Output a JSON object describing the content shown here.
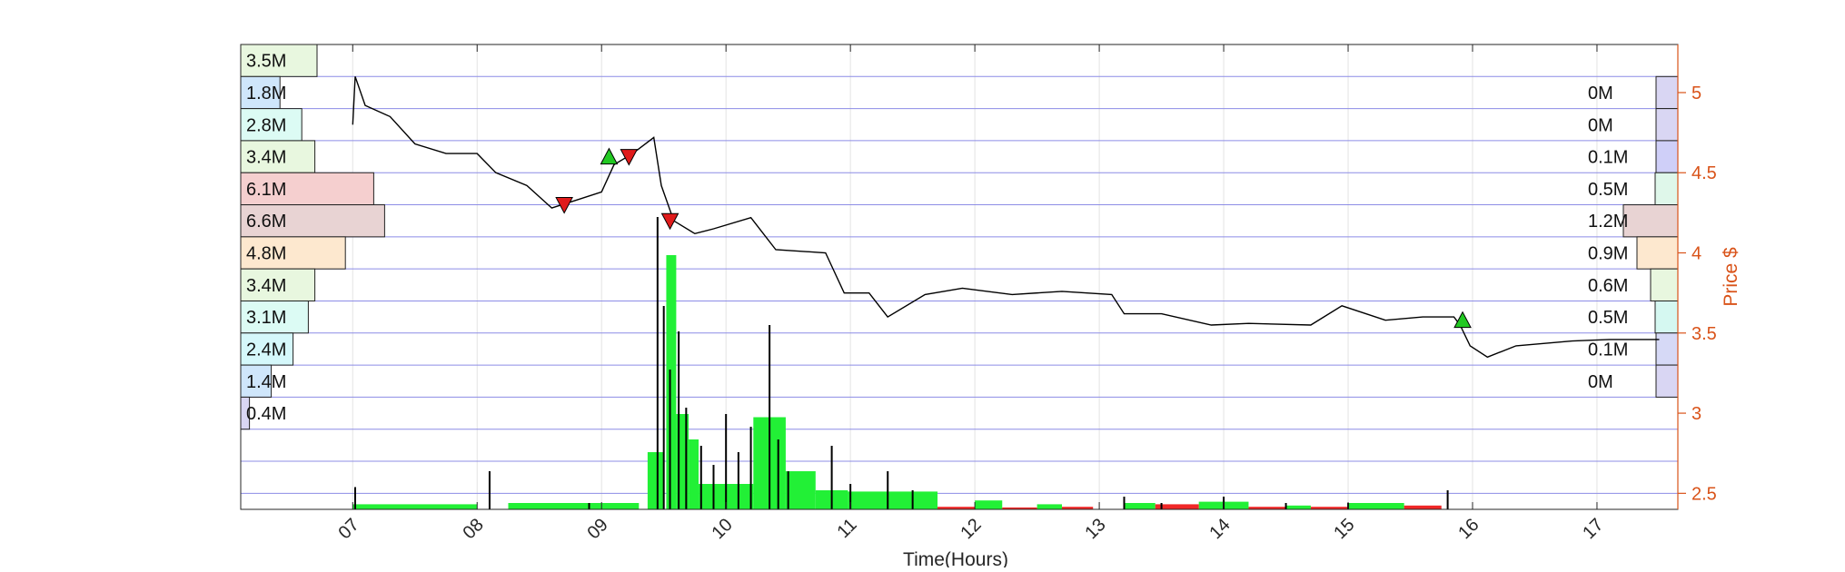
{
  "chart_data": {
    "type": "line",
    "title": "",
    "xlabel": "Time(Hours)",
    "ylabel": "Price $",
    "xlim": [
      6.1,
      17.65
    ],
    "ylim": [
      2.4,
      5.3
    ],
    "x_ticks": [
      "07",
      "08",
      "09",
      "10",
      "11",
      "12",
      "13",
      "14",
      "15",
      "16",
      "17"
    ],
    "y_ticks": [
      2.5,
      3,
      3.5,
      4,
      4.5,
      5
    ],
    "grid": true,
    "price_levels": [
      2.5,
      2.7,
      2.9,
      3.1,
      3.3,
      3.5,
      3.7,
      3.9,
      4.1,
      4.3,
      4.5,
      4.7,
      4.9,
      5.1,
      5.3
    ],
    "price_series": [
      [
        7.0,
        4.8
      ],
      [
        7.02,
        5.1
      ],
      [
        7.1,
        4.92
      ],
      [
        7.3,
        4.85
      ],
      [
        7.5,
        4.68
      ],
      [
        7.75,
        4.62
      ],
      [
        8.0,
        4.62
      ],
      [
        8.15,
        4.5
      ],
      [
        8.4,
        4.42
      ],
      [
        8.6,
        4.28
      ],
      [
        8.8,
        4.33
      ],
      [
        9.0,
        4.38
      ],
      [
        9.1,
        4.55
      ],
      [
        9.25,
        4.62
      ],
      [
        9.42,
        4.72
      ],
      [
        9.48,
        4.42
      ],
      [
        9.58,
        4.2
      ],
      [
        9.75,
        4.12
      ],
      [
        9.9,
        4.15
      ],
      [
        10.2,
        4.22
      ],
      [
        10.4,
        4.02
      ],
      [
        10.8,
        4.0
      ],
      [
        10.95,
        3.75
      ],
      [
        11.15,
        3.75
      ],
      [
        11.3,
        3.6
      ],
      [
        11.6,
        3.74
      ],
      [
        11.9,
        3.78
      ],
      [
        12.3,
        3.74
      ],
      [
        12.7,
        3.76
      ],
      [
        13.1,
        3.74
      ],
      [
        13.2,
        3.62
      ],
      [
        13.5,
        3.62
      ],
      [
        13.9,
        3.55
      ],
      [
        14.2,
        3.56
      ],
      [
        14.7,
        3.55
      ],
      [
        14.95,
        3.67
      ],
      [
        15.3,
        3.58
      ],
      [
        15.6,
        3.6
      ],
      [
        15.85,
        3.6
      ],
      [
        15.9,
        3.55
      ],
      [
        15.98,
        3.42
      ],
      [
        16.12,
        3.35
      ],
      [
        16.35,
        3.42
      ],
      [
        16.8,
        3.45
      ],
      [
        17.1,
        3.46
      ],
      [
        17.5,
        3.46
      ]
    ],
    "signals": [
      {
        "type": "buy",
        "x": 9.06,
        "y": 4.6
      },
      {
        "type": "buy",
        "x": 15.92,
        "y": 3.58
      },
      {
        "type": "sell",
        "x": 8.7,
        "y": 4.3
      },
      {
        "type": "sell",
        "x": 9.22,
        "y": 4.6
      },
      {
        "type": "sell",
        "x": 9.55,
        "y": 4.2
      }
    ],
    "volume_profile_left": [
      {
        "price": 5.3,
        "label": "3.5M",
        "value": 3.5,
        "color": "#e8f7df"
      },
      {
        "price": 5.1,
        "label": "1.8M",
        "value": 1.8,
        "color": "#cfe6fb"
      },
      {
        "price": 4.9,
        "label": "2.8M",
        "value": 2.8,
        "color": "#dcfbf4"
      },
      {
        "price": 4.7,
        "label": "3.4M",
        "value": 3.4,
        "color": "#e8f7df"
      },
      {
        "price": 4.5,
        "label": "6.1M",
        "value": 6.1,
        "color": "#f5cfcf"
      },
      {
        "price": 4.3,
        "label": "6.6M",
        "value": 6.6,
        "color": "#e8d3d3"
      },
      {
        "price": 4.1,
        "label": "4.8M",
        "value": 4.8,
        "color": "#fde8cf"
      },
      {
        "price": 3.9,
        "label": "3.4M",
        "value": 3.4,
        "color": "#e8f7df"
      },
      {
        "price": 3.7,
        "label": "3.1M",
        "value": 3.1,
        "color": "#dcfbf4"
      },
      {
        "price": 3.5,
        "label": "2.4M",
        "value": 2.4,
        "color": "#d5f8fb"
      },
      {
        "price": 3.3,
        "label": "1.4M",
        "value": 1.4,
        "color": "#cfe6fb"
      },
      {
        "price": 3.1,
        "label": "0.4M",
        "value": 0.4,
        "color": "#d9d6f3"
      }
    ],
    "volume_profile_right": [
      {
        "price": 5.1,
        "label": "0M",
        "value": 0.0,
        "color": "#d9d6f3"
      },
      {
        "price": 4.9,
        "label": "0M",
        "value": 0.0,
        "color": "#d9d6f3"
      },
      {
        "price": 4.7,
        "label": "0.1M",
        "value": 0.1,
        "color": "#cfcff8"
      },
      {
        "price": 4.5,
        "label": "0.5M",
        "value": 0.5,
        "color": "#dff7ea"
      },
      {
        "price": 4.3,
        "label": "1.2M",
        "value": 1.2,
        "color": "#e8d3d3"
      },
      {
        "price": 4.1,
        "label": "0.9M",
        "value": 0.9,
        "color": "#fde8cf"
      },
      {
        "price": 3.9,
        "label": "0.6M",
        "value": 0.6,
        "color": "#e8f7df"
      },
      {
        "price": 3.7,
        "label": "0.5M",
        "value": 0.5,
        "color": "#d5f8f1"
      },
      {
        "price": 3.5,
        "label": "0.1M",
        "value": 0.1,
        "color": "#d6d9f6"
      },
      {
        "price": 3.3,
        "label": "0M",
        "value": 0.0,
        "color": "#d9d6f3"
      }
    ],
    "volume_bars_green": [
      {
        "x0": 7.0,
        "x1": 8.0,
        "v": 0.08
      },
      {
        "x0": 8.25,
        "x1": 9.3,
        "v": 0.1
      },
      {
        "x0": 9.37,
        "x1": 9.5,
        "v": 0.9
      },
      {
        "x0": 9.52,
        "x1": 9.6,
        "v": 4.0
      },
      {
        "x0": 9.6,
        "x1": 9.7,
        "v": 1.5
      },
      {
        "x0": 9.7,
        "x1": 9.78,
        "v": 1.1
      },
      {
        "x0": 9.78,
        "x1": 10.22,
        "v": 0.4
      },
      {
        "x0": 10.22,
        "x1": 10.48,
        "v": 1.45
      },
      {
        "x0": 10.48,
        "x1": 10.72,
        "v": 0.6
      },
      {
        "x0": 10.72,
        "x1": 10.98,
        "v": 0.3
      },
      {
        "x0": 10.98,
        "x1": 11.7,
        "v": 0.28
      },
      {
        "x0": 12.0,
        "x1": 12.22,
        "v": 0.14
      },
      {
        "x0": 12.5,
        "x1": 12.7,
        "v": 0.08
      },
      {
        "x0": 13.2,
        "x1": 13.45,
        "v": 0.1
      },
      {
        "x0": 13.8,
        "x1": 14.2,
        "v": 0.12
      },
      {
        "x0": 14.5,
        "x1": 14.7,
        "v": 0.06
      },
      {
        "x0": 15.0,
        "x1": 15.45,
        "v": 0.1
      }
    ],
    "volume_bars_red": [
      {
        "x0": 11.7,
        "x1": 12.0,
        "v": 0.04
      },
      {
        "x0": 12.22,
        "x1": 12.5,
        "v": 0.03
      },
      {
        "x0": 12.7,
        "x1": 12.95,
        "v": 0.04
      },
      {
        "x0": 13.45,
        "x1": 13.8,
        "v": 0.08
      },
      {
        "x0": 14.2,
        "x1": 14.5,
        "v": 0.04
      },
      {
        "x0": 14.7,
        "x1": 15.0,
        "v": 0.04
      },
      {
        "x0": 15.45,
        "x1": 15.75,
        "v": 0.06
      }
    ],
    "volume_spikes": [
      [
        7.02,
        0.35
      ],
      [
        8.1,
        0.6
      ],
      [
        8.9,
        0.1
      ],
      [
        9.45,
        4.6
      ],
      [
        9.5,
        3.2
      ],
      [
        9.55,
        2.2
      ],
      [
        9.62,
        2.8
      ],
      [
        9.68,
        1.6
      ],
      [
        9.8,
        1.0
      ],
      [
        9.9,
        0.7
      ],
      [
        10.0,
        1.5
      ],
      [
        10.1,
        0.9
      ],
      [
        10.2,
        1.3
      ],
      [
        10.35,
        2.9
      ],
      [
        10.42,
        1.1
      ],
      [
        10.5,
        0.6
      ],
      [
        10.85,
        1.0
      ],
      [
        11.0,
        0.4
      ],
      [
        11.3,
        0.6
      ],
      [
        11.5,
        0.3
      ],
      [
        13.2,
        0.2
      ],
      [
        13.5,
        0.1
      ],
      [
        14.0,
        0.2
      ],
      [
        14.5,
        0.1
      ],
      [
        15.0,
        0.1
      ],
      [
        15.8,
        0.3
      ]
    ]
  }
}
